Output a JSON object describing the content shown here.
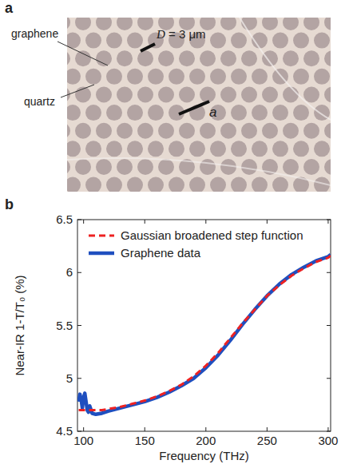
{
  "image_panel": {
    "panel": "a",
    "labels": [
      "graphene",
      "quartz",
      "D = 3 μm",
      "a"
    ]
  },
  "chart_data": {
    "type": "line",
    "panel": "b",
    "x_label": "Frequency (THz)",
    "y_label": "Near-IR 1-T/T₀ (%)",
    "x": [
      96,
      97,
      98,
      99,
      100,
      101,
      102,
      103,
      104,
      105,
      107,
      110,
      115,
      120,
      130,
      140,
      150,
      160,
      170,
      180,
      190,
      200,
      210,
      220,
      230,
      240,
      250,
      260,
      270,
      280,
      290,
      300,
      302
    ],
    "series": [
      {
        "name": "Graphene data",
        "color": "#1f4fbf",
        "line_style": "solid",
        "values": [
          4.78,
          4.85,
          4.8,
          4.72,
          4.82,
          4.86,
          4.78,
          4.7,
          4.68,
          4.74,
          4.67,
          4.66,
          4.67,
          4.69,
          4.72,
          4.75,
          4.78,
          4.82,
          4.87,
          4.93,
          5.0,
          5.1,
          5.22,
          5.36,
          5.51,
          5.65,
          5.78,
          5.89,
          5.98,
          6.05,
          6.11,
          6.15,
          6.17
        ]
      },
      {
        "name": "Gaussian broadened step function",
        "color": "#ee2222",
        "line_style": "dashed",
        "values": [
          4.7,
          4.7,
          4.7,
          4.7,
          4.7,
          4.7,
          4.7,
          4.7,
          4.7,
          4.7,
          4.7,
          4.7,
          4.7,
          4.71,
          4.73,
          4.76,
          4.79,
          4.83,
          4.88,
          4.94,
          5.02,
          5.12,
          5.24,
          5.38,
          5.52,
          5.65,
          5.78,
          5.88,
          5.97,
          6.04,
          6.1,
          6.14,
          6.16
        ]
      }
    ],
    "xlim": [
      95,
      302
    ],
    "xticks": [
      100,
      150,
      200,
      250,
      300
    ],
    "ylim": [
      4.5,
      6.5
    ],
    "yticks": [
      4.5,
      5,
      5.5,
      6,
      6.5
    ],
    "grid": false,
    "legend": "upper left"
  }
}
